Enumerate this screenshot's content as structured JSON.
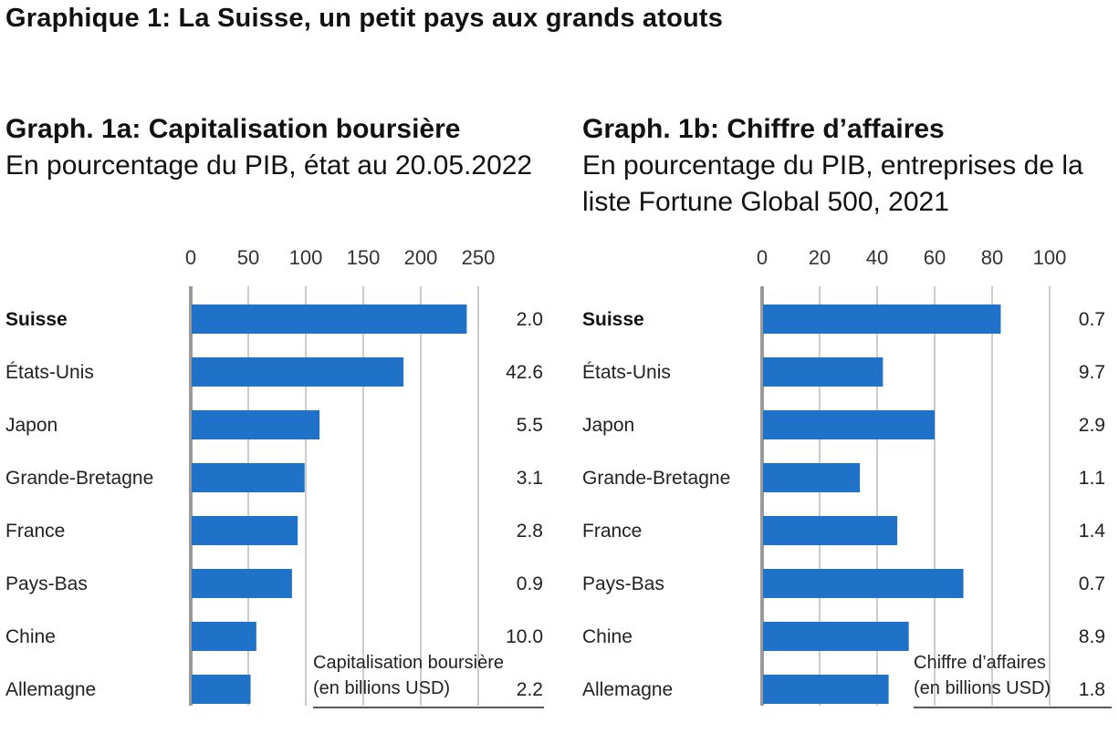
{
  "header": {
    "title": "Graphique 1: La Suisse, un petit pays aux grands atouts"
  },
  "colors": {
    "bar": "#1f72c7",
    "gridline": "#999999",
    "baseline": "#9a9a9a",
    "text": "#222222"
  },
  "chart_data": [
    {
      "type": "bar",
      "orientation": "horizontal",
      "title": "Graph. 1a: Capitalisation boursière",
      "subtitle": "En pourcentage du PIB, état au 20.05.2022",
      "categories": [
        "Suisse",
        "États-Unis",
        "Japon",
        "Grande-Bretagne",
        "France",
        "Pays-Bas",
        "Chine",
        "Allemagne"
      ],
      "highlight_category": "Suisse",
      "values": [
        240,
        185,
        112,
        99,
        93,
        88,
        57,
        52
      ],
      "xlim": [
        0,
        250
      ],
      "xticks": [
        "0",
        "50",
        "100",
        "150",
        "200",
        "250"
      ],
      "grid": true,
      "secondary_column": {
        "label_line1": "Capitalisation boursière",
        "label_line2": "(en billions USD)",
        "values": [
          "2.0",
          "42.6",
          "5.5",
          "3.1",
          "2.8",
          "0.9",
          "10.0",
          "2.2"
        ]
      }
    },
    {
      "type": "bar",
      "orientation": "horizontal",
      "title": "Graph. 1b: Chiffre d’affaires",
      "subtitle": "En pourcentage du PIB, entreprises de la liste Fortune Global 500, 2021",
      "categories": [
        "Suisse",
        "États-Unis",
        "Japon",
        "Grande-Bretagne",
        "France",
        "Pays-Bas",
        "Chine",
        "Allemagne"
      ],
      "highlight_category": "Suisse",
      "values": [
        83,
        42,
        60,
        34,
        47,
        70,
        51,
        44
      ],
      "xlim": [
        0,
        100
      ],
      "xticks": [
        "0",
        "20",
        "40",
        "60",
        "80",
        "100"
      ],
      "grid": true,
      "secondary_column": {
        "label_line1": "Chiffre d’affaires",
        "label_line2": "(en billions USD)",
        "values": [
          "0.7",
          "9.7",
          "2.9",
          "1.1",
          "1.4",
          "0.7",
          "8.9",
          "1.8"
        ]
      }
    }
  ]
}
